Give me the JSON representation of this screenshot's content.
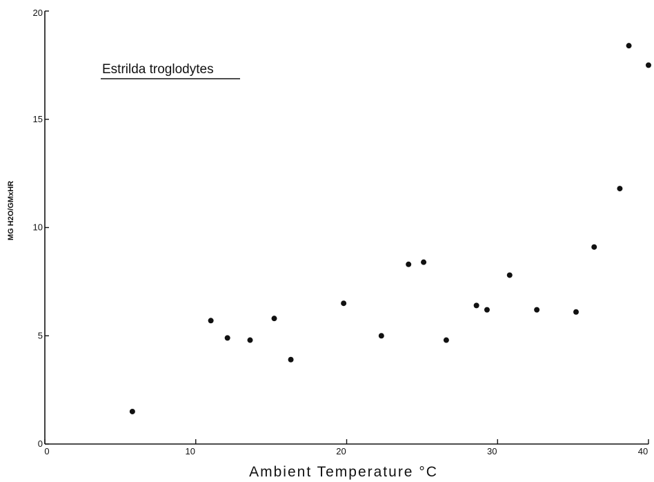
{
  "chart_data": {
    "type": "scatter",
    "title": "",
    "annotation": "Estrilda troglodytes",
    "xlabel": "Ambient Temperature °C",
    "ylabel": "MG H2O/GMxHR",
    "xlim": [
      0,
      40
    ],
    "ylim": [
      0,
      20
    ],
    "x_ticks": [
      0,
      10,
      20,
      30,
      40
    ],
    "y_ticks": [
      0,
      5,
      10,
      15,
      20
    ],
    "grid": false,
    "series": [
      {
        "points": [
          {
            "x": 5.8,
            "y": 1.5
          },
          {
            "x": 11.0,
            "y": 5.7
          },
          {
            "x": 12.1,
            "y": 4.9
          },
          {
            "x": 13.6,
            "y": 4.8
          },
          {
            "x": 15.2,
            "y": 5.8
          },
          {
            "x": 16.3,
            "y": 3.9
          },
          {
            "x": 19.8,
            "y": 6.5
          },
          {
            "x": 22.3,
            "y": 5.0
          },
          {
            "x": 24.1,
            "y": 8.3
          },
          {
            "x": 25.1,
            "y": 8.4
          },
          {
            "x": 26.6,
            "y": 4.8
          },
          {
            "x": 28.6,
            "y": 6.4
          },
          {
            "x": 29.3,
            "y": 6.2
          },
          {
            "x": 30.8,
            "y": 7.8
          },
          {
            "x": 32.6,
            "y": 6.2
          },
          {
            "x": 35.2,
            "y": 6.1
          },
          {
            "x": 36.4,
            "y": 9.1
          },
          {
            "x": 38.1,
            "y": 11.8
          },
          {
            "x": 38.7,
            "y": 18.4
          },
          {
            "x": 40.0,
            "y": 17.5
          }
        ]
      }
    ]
  }
}
